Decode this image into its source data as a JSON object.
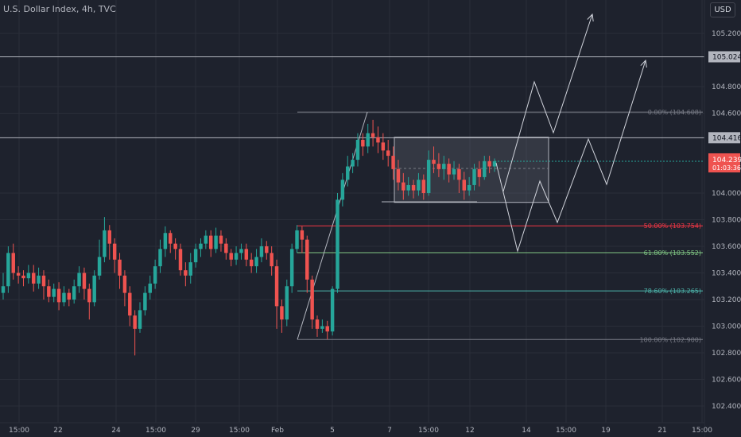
{
  "title": "U.S. Dollar Index, 4h, TVC",
  "currency_button": "USD",
  "colors": {
    "background": "#1e222d",
    "grid": "#2a2e39",
    "up": "#26a69a",
    "down": "#ef5350",
    "axis_text": "#b2b5be",
    "drawing": "#b2b5be",
    "fib_50": "#f23645",
    "fib_618": "#81c784",
    "fib_786": "#4db6ac",
    "fib_0": "#787b86",
    "fib_100": "#787b86"
  },
  "chart_data": {
    "type": "candlestick",
    "y_axis": {
      "range": [
        102.32,
        105.4
      ],
      "ticks": [
        "105.200",
        "104.800",
        "104.600",
        "104.000",
        "103.800",
        "103.600",
        "103.400",
        "103.200",
        "103.000",
        "102.800",
        "102.600",
        "102.400"
      ],
      "tick_values": [
        105.2,
        104.8,
        104.6,
        104.0,
        103.8,
        103.6,
        103.4,
        103.2,
        103.0,
        102.8,
        102.6,
        102.4
      ]
    },
    "x_axis": {
      "ticks": [
        "15:00",
        "22",
        "24",
        "15:00",
        "29",
        "15:00",
        "Feb",
        "5",
        "7",
        "15:00",
        "12",
        "14",
        "15:00",
        "19",
        "21",
        "15:00"
      ]
    },
    "horizontal_lines": [
      105.024,
      104.416
    ],
    "price_labels": {
      "line_upper": "105.024",
      "line_lower": "104.416",
      "last_price": "104.239",
      "countdown": "01:03:36"
    },
    "fibonacci": [
      {
        "label": "0.00% (104.608)",
        "value": 104.608
      },
      {
        "label": "50.00% (103.754)",
        "value": 103.754
      },
      {
        "label": "61.80% (103.552)",
        "value": 103.552
      },
      {
        "label": "78.60% (103.265)",
        "value": 103.265
      },
      {
        "label": "100.00% (102.900)",
        "value": 102.9
      }
    ],
    "consolidation_box": {
      "high": 104.42,
      "low": 103.93
    },
    "candles": [
      [
        103.25,
        103.3,
        103.4,
        103.2
      ],
      [
        103.3,
        103.55,
        103.6,
        103.25
      ],
      [
        103.55,
        103.4,
        103.62,
        103.35
      ],
      [
        103.4,
        103.38,
        103.45,
        103.32
      ],
      [
        103.38,
        103.36,
        103.42,
        103.3
      ],
      [
        103.36,
        103.4,
        103.46,
        103.32
      ],
      [
        103.4,
        103.32,
        103.46,
        103.26
      ],
      [
        103.32,
        103.38,
        103.44,
        103.28
      ],
      [
        103.38,
        103.3,
        103.42,
        103.2
      ],
      [
        103.3,
        103.22,
        103.35,
        103.18
      ],
      [
        103.22,
        103.28,
        103.32,
        103.18
      ],
      [
        103.28,
        103.18,
        103.33,
        103.12
      ],
      [
        103.18,
        103.25,
        103.3,
        103.15
      ],
      [
        103.25,
        103.2,
        103.28,
        103.15
      ],
      [
        103.2,
        103.3,
        103.35,
        103.17
      ],
      [
        103.3,
        103.4,
        103.45,
        103.25
      ],
      [
        103.4,
        103.28,
        103.44,
        103.2
      ],
      [
        103.28,
        103.18,
        103.32,
        103.05
      ],
      [
        103.18,
        103.38,
        103.42,
        103.15
      ],
      [
        103.38,
        103.52,
        103.65,
        103.35
      ],
      [
        103.52,
        103.72,
        103.82,
        103.48
      ],
      [
        103.72,
        103.62,
        103.76,
        103.5
      ],
      [
        103.62,
        103.5,
        103.66,
        103.4
      ],
      [
        103.5,
        103.38,
        103.55,
        103.28
      ],
      [
        103.38,
        103.25,
        103.42,
        103.15
      ],
      [
        103.25,
        103.08,
        103.3,
        103.0
      ],
      [
        103.08,
        102.98,
        103.12,
        102.78
      ],
      [
        102.98,
        103.12,
        103.18,
        102.95
      ],
      [
        103.12,
        103.25,
        103.3,
        103.08
      ],
      [
        103.25,
        103.32,
        103.38,
        103.2
      ],
      [
        103.32,
        103.45,
        103.5,
        103.28
      ],
      [
        103.45,
        103.58,
        103.65,
        103.4
      ],
      [
        103.58,
        103.7,
        103.75,
        103.52
      ],
      [
        103.7,
        103.62,
        103.72,
        103.55
      ],
      [
        103.62,
        103.58,
        103.66,
        103.5
      ],
      [
        103.58,
        103.42,
        103.62,
        103.38
      ],
      [
        103.42,
        103.38,
        103.48,
        103.3
      ],
      [
        103.38,
        103.48,
        103.55,
        103.32
      ],
      [
        103.48,
        103.58,
        103.62,
        103.44
      ],
      [
        103.58,
        103.62,
        103.66,
        103.52
      ],
      [
        103.62,
        103.68,
        103.72,
        103.58
      ],
      [
        103.68,
        103.58,
        103.72,
        103.52
      ],
      [
        103.58,
        103.68,
        103.74,
        103.55
      ],
      [
        103.68,
        103.62,
        103.72,
        103.56
      ],
      [
        103.62,
        103.55,
        103.66,
        103.5
      ],
      [
        103.55,
        103.5,
        103.58,
        103.45
      ],
      [
        103.5,
        103.55,
        103.6,
        103.46
      ],
      [
        103.55,
        103.58,
        103.62,
        103.5
      ],
      [
        103.58,
        103.5,
        103.62,
        103.45
      ],
      [
        103.5,
        103.45,
        103.55,
        103.4
      ],
      [
        103.45,
        103.52,
        103.58,
        103.4
      ],
      [
        103.52,
        103.6,
        103.66,
        103.48
      ],
      [
        103.6,
        103.55,
        103.64,
        103.5
      ],
      [
        103.55,
        103.45,
        103.6,
        103.38
      ],
      [
        103.45,
        103.15,
        103.5,
        102.98
      ],
      [
        103.15,
        103.05,
        103.2,
        102.95
      ],
      [
        103.05,
        103.3,
        103.35,
        103.0
      ],
      [
        103.3,
        103.58,
        103.62,
        103.25
      ],
      [
        103.58,
        103.72,
        103.76,
        103.55
      ],
      [
        103.72,
        103.65,
        103.75,
        103.55
      ],
      [
        103.65,
        103.35,
        103.68,
        103.25
      ],
      [
        103.35,
        103.05,
        103.38,
        102.98
      ],
      [
        103.05,
        102.98,
        103.08,
        102.92
      ],
      [
        102.98,
        103.0,
        103.05,
        102.95
      ],
      [
        103.0,
        102.96,
        103.04,
        102.9
      ],
      [
        102.96,
        103.28,
        103.3,
        102.93
      ],
      [
        103.28,
        103.95,
        104.0,
        103.25
      ],
      [
        103.95,
        104.1,
        104.15,
        103.9
      ],
      [
        104.1,
        104.2,
        104.28,
        104.05
      ],
      [
        104.2,
        104.25,
        104.3,
        104.15
      ],
      [
        104.25,
        104.4,
        104.45,
        104.2
      ],
      [
        104.4,
        104.35,
        104.45,
        104.28
      ],
      [
        104.35,
        104.45,
        104.52,
        104.3
      ],
      [
        104.45,
        104.42,
        104.55,
        104.35
      ],
      [
        104.42,
        104.38,
        104.5,
        104.3
      ],
      [
        104.38,
        104.32,
        104.45,
        104.25
      ],
      [
        104.32,
        104.28,
        104.4,
        104.2
      ],
      [
        104.28,
        104.18,
        104.35,
        104.1
      ],
      [
        104.18,
        104.08,
        104.25,
        104.02
      ],
      [
        104.08,
        104.02,
        104.15,
        103.95
      ],
      [
        104.02,
        104.06,
        104.12,
        103.98
      ],
      [
        104.06,
        104.02,
        104.1,
        103.96
      ],
      [
        104.02,
        104.1,
        104.15,
        103.98
      ],
      [
        104.1,
        104.0,
        104.14,
        103.95
      ],
      [
        104.0,
        104.25,
        104.32,
        103.98
      ],
      [
        104.25,
        104.22,
        104.35,
        104.15
      ],
      [
        104.22,
        104.18,
        104.3,
        104.12
      ],
      [
        104.18,
        104.22,
        104.28,
        104.1
      ],
      [
        104.22,
        104.14,
        104.26,
        104.08
      ],
      [
        104.14,
        104.18,
        104.24,
        104.1
      ],
      [
        104.18,
        104.1,
        104.22,
        104.0
      ],
      [
        104.1,
        104.02,
        104.16,
        103.95
      ],
      [
        104.02,
        104.06,
        104.12,
        103.98
      ],
      [
        104.06,
        104.18,
        104.22,
        104.02
      ],
      [
        104.18,
        104.12,
        104.24,
        104.05
      ],
      [
        104.12,
        104.24,
        104.28,
        104.1
      ],
      [
        104.24,
        104.2,
        104.28,
        104.15
      ],
      [
        104.2,
        104.239,
        104.26,
        104.16
      ]
    ],
    "projection_paths": [
      [
        [
          633,
          241
        ],
        [
          672,
          103
        ],
        [
          696,
          167
        ],
        [
          745,
          18
        ]
      ],
      [
        [
          624,
          205
        ],
        [
          651,
          316
        ],
        [
          679,
          228
        ],
        [
          701,
          280
        ],
        [
          740,
          175
        ],
        [
          763,
          232
        ],
        [
          812,
          76
        ]
      ]
    ]
  }
}
